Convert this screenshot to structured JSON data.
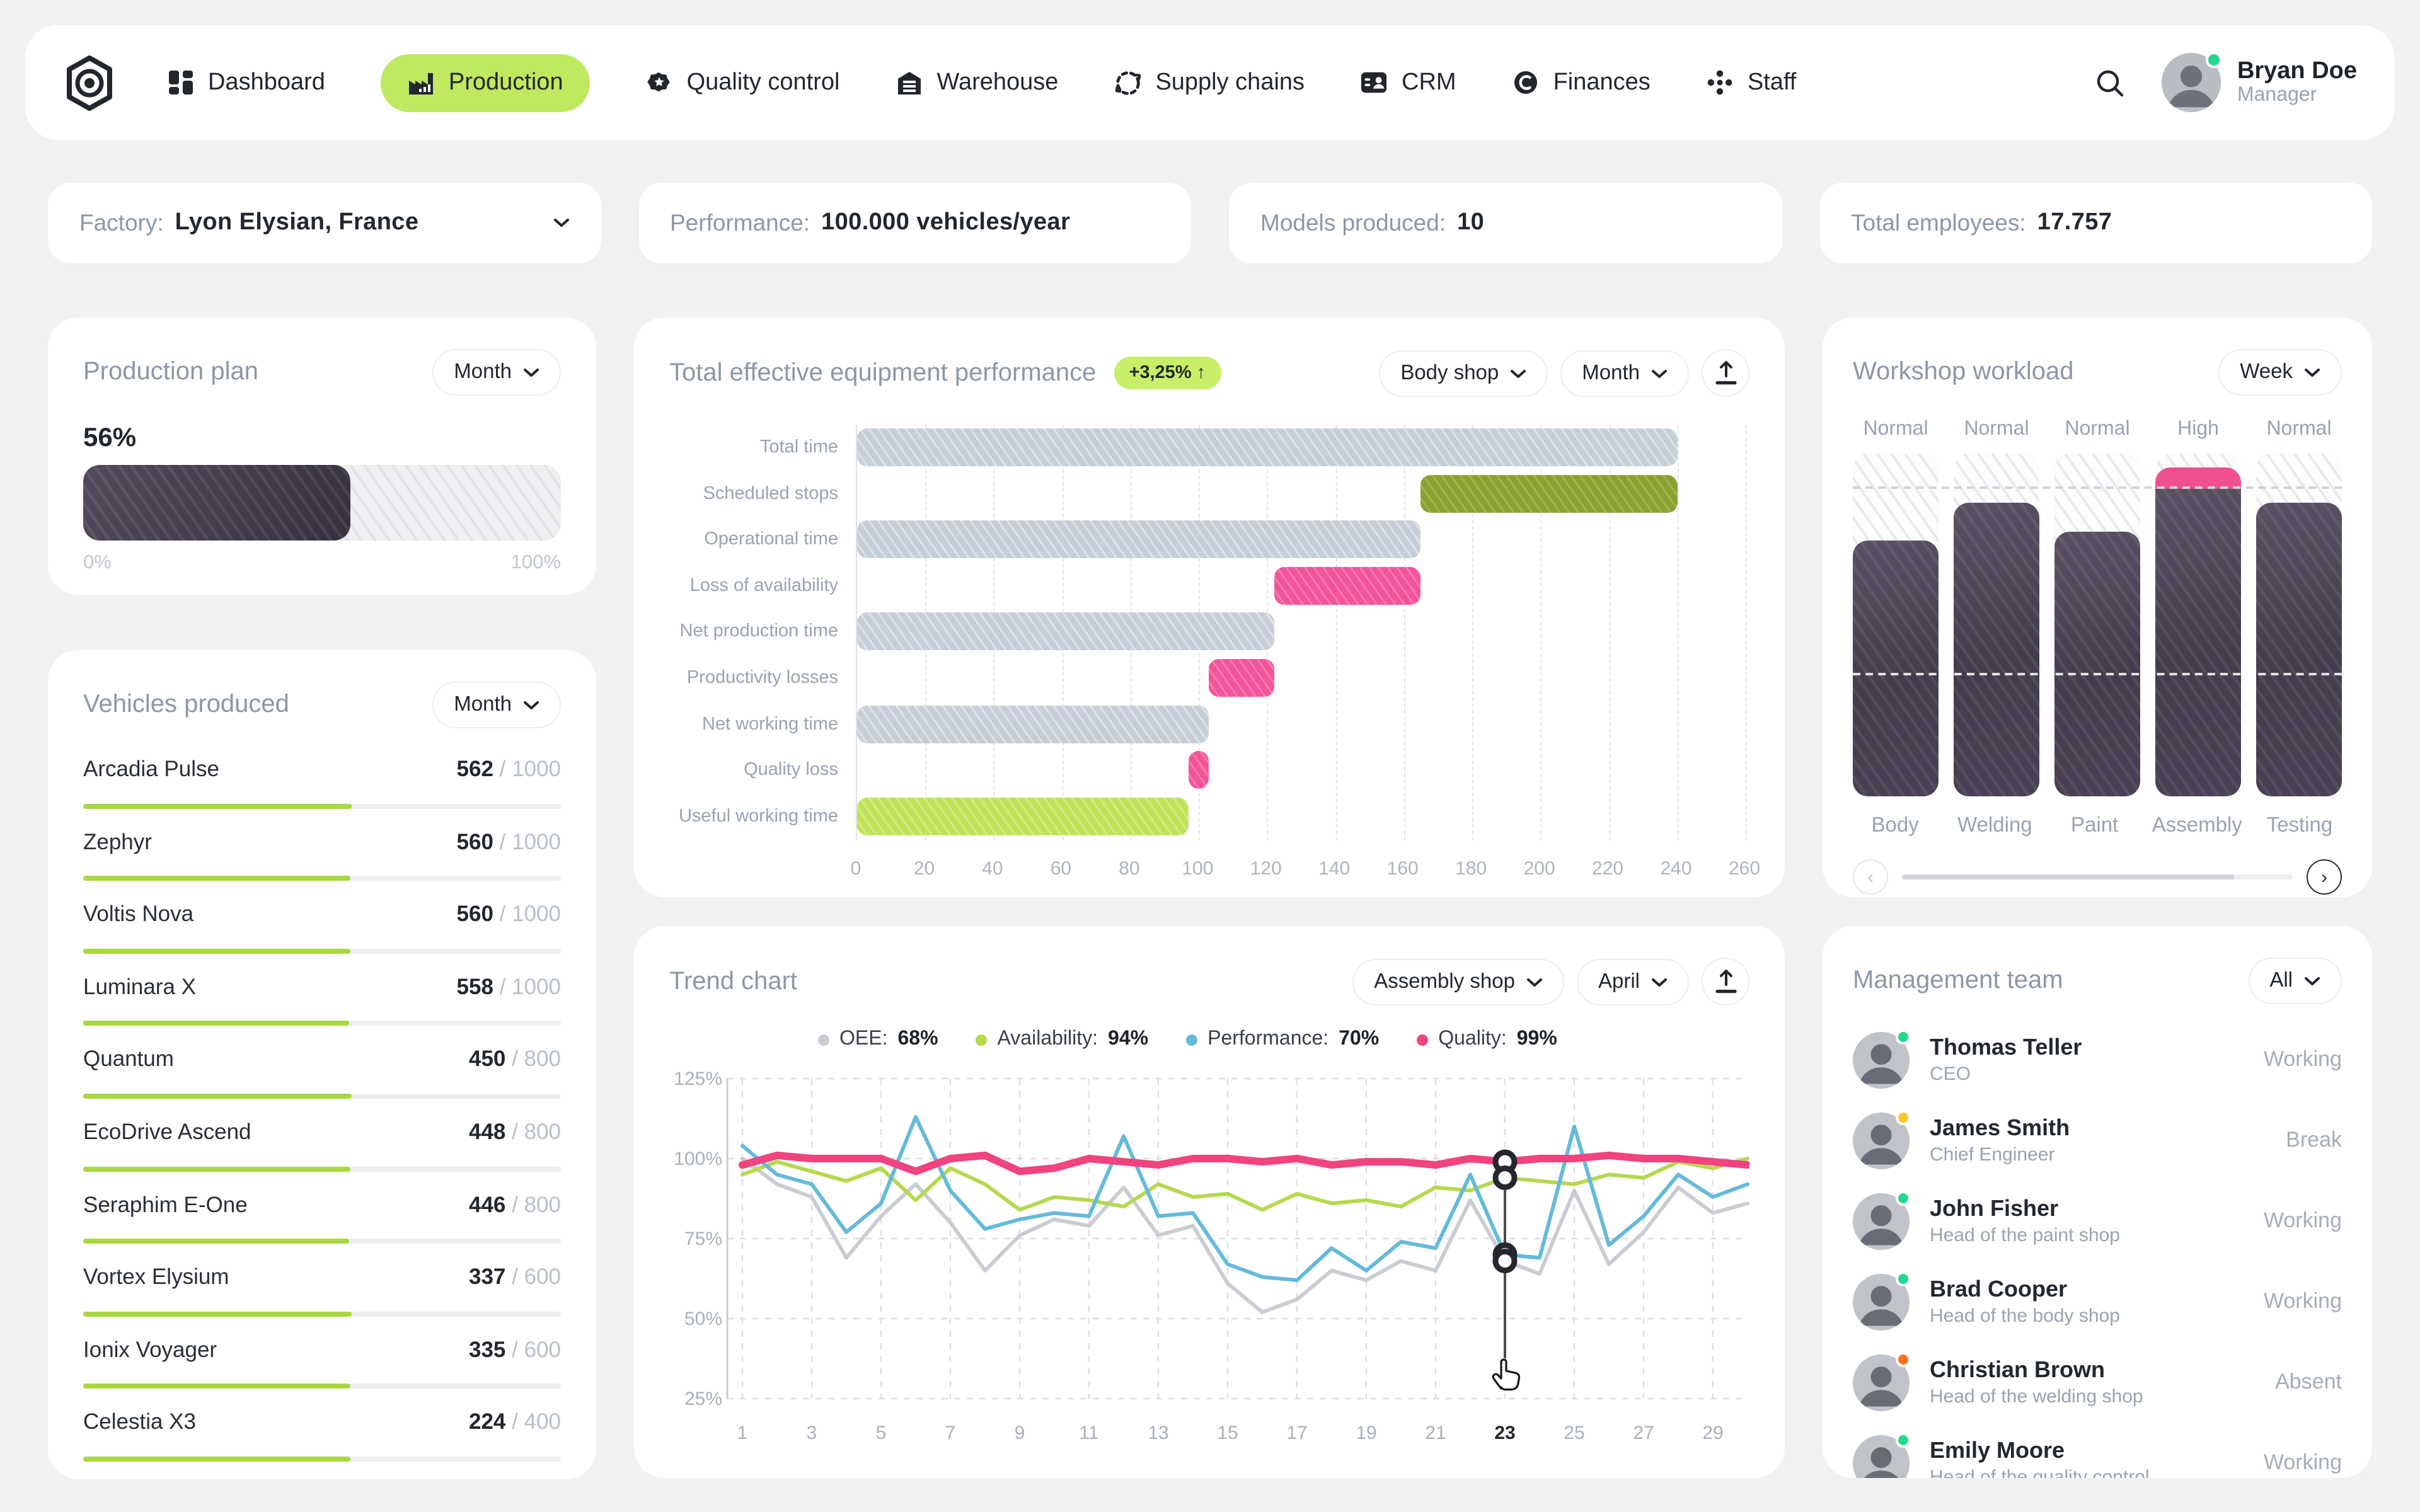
{
  "colors": {
    "lime": "#bfe95f",
    "lime_bar": "#a9d740",
    "pink": "#f0508f",
    "olive": "#8ba12e",
    "blue": "#64bada",
    "gray_line": "#c9ccd1",
    "green_line": "#b5d94d",
    "dark_bar": "#433c4d",
    "status_green": "#22d98b",
    "status_yellow": "#fec52e",
    "status_orange": "#fd7222"
  },
  "nav": {
    "items": [
      {
        "label": "Dashboard",
        "icon": "dashboard",
        "active": false
      },
      {
        "label": "Production",
        "icon": "production",
        "active": true
      },
      {
        "label": "Quality control",
        "icon": "quality",
        "active": false
      },
      {
        "label": "Warehouse",
        "icon": "warehouse",
        "active": false
      },
      {
        "label": "Supply chains",
        "icon": "supply",
        "active": false
      },
      {
        "label": "CRM",
        "icon": "crm",
        "active": false
      },
      {
        "label": "Finances",
        "icon": "finances",
        "active": false
      },
      {
        "label": "Staff",
        "icon": "staff",
        "active": false
      }
    ],
    "user": {
      "name": "Bryan Doe",
      "role": "Manager",
      "status_color": "#22d98b"
    }
  },
  "info_cards": [
    {
      "label": "Factory:",
      "value": "Lyon Elysian,  France",
      "dropdown": true
    },
    {
      "label": "Performance:",
      "value": "100.000 vehicles/year",
      "dropdown": false
    },
    {
      "label": "Models produced:",
      "value": "10",
      "dropdown": false
    },
    {
      "label": "Total employees:",
      "value": "17.757",
      "dropdown": false
    }
  ],
  "production_plan": {
    "title": "Production plan",
    "period": "Month",
    "percent": 56,
    "percent_label": "56%",
    "min_label": "0%",
    "max_label": "100%"
  },
  "vehicles": {
    "title": "Vehicles produced",
    "period": "Month",
    "items": [
      {
        "name": "Arcadia Pulse",
        "produced": 562,
        "target": 1000
      },
      {
        "name": "Zephyr",
        "produced": 560,
        "target": 1000
      },
      {
        "name": "Voltis Nova",
        "produced": 560,
        "target": 1000
      },
      {
        "name": "Luminara X",
        "produced": 558,
        "target": 1000
      },
      {
        "name": "Quantum",
        "produced": 450,
        "target": 800
      },
      {
        "name": "EcoDrive Ascend",
        "produced": 448,
        "target": 800
      },
      {
        "name": "Seraphim E-One",
        "produced": 446,
        "target": 800
      },
      {
        "name": "Vortex Elysium",
        "produced": 337,
        "target": 600
      },
      {
        "name": "Ionix Voyager",
        "produced": 335,
        "target": 600
      },
      {
        "name": "Celestia X3",
        "produced": 224,
        "target": 400
      }
    ]
  },
  "teep": {
    "title": "Total effective equipment performance",
    "badge": {
      "text": "+3,25%",
      "arrow": "↑"
    },
    "shop_filter": "Body shop",
    "period_filter": "Month",
    "chart_data": {
      "type": "bar",
      "orientation": "horizontal-waterfall",
      "categories": [
        "Total time",
        "Scheduled stops",
        "Operational time",
        "Loss of availability",
        "Net production time",
        "Productivity losses",
        "Net working time",
        "Quality loss",
        "Useful working time"
      ],
      "ranges": [
        [
          0,
          240
        ],
        [
          165,
          240
        ],
        [
          0,
          165
        ],
        [
          122,
          165
        ],
        [
          0,
          122
        ],
        [
          103,
          122
        ],
        [
          0,
          103
        ],
        [
          97,
          103
        ],
        [
          0,
          97
        ]
      ],
      "bar_colors": [
        "gray",
        "olive",
        "gray",
        "pink",
        "gray",
        "pink",
        "gray",
        "pink",
        "lime"
      ],
      "xticks": [
        0,
        20,
        40,
        60,
        80,
        100,
        120,
        140,
        160,
        180,
        200,
        220,
        240,
        260
      ],
      "xlim": [
        0,
        260
      ],
      "grid": "dashed-vertical"
    }
  },
  "trend": {
    "title": "Trend chart",
    "shop_filter": "Assembly shop",
    "period_filter": "April",
    "chart_data": {
      "type": "line",
      "x": [
        1,
        2,
        3,
        4,
        5,
        6,
        7,
        8,
        9,
        10,
        11,
        12,
        13,
        14,
        15,
        16,
        17,
        18,
        19,
        20,
        21,
        22,
        23,
        24,
        25,
        26,
        27,
        28,
        29,
        30
      ],
      "xticks": [
        1,
        3,
        5,
        7,
        9,
        11,
        13,
        15,
        17,
        19,
        21,
        23,
        25,
        27,
        29
      ],
      "yticks": [
        125,
        100,
        75,
        50,
        25
      ],
      "ytick_labels": [
        "125%",
        "100%",
        "75%",
        "50%",
        "25%"
      ],
      "ylim": [
        25,
        125
      ],
      "selected_day": 23,
      "grid": "dashed",
      "legend_position": "top",
      "series": [
        {
          "name": "OEE",
          "value_label": "68%",
          "color": "#c9ccd1",
          "values": [
            100,
            92,
            88,
            69,
            82,
            92,
            80,
            65,
            76,
            81,
            79,
            91,
            76,
            79,
            61,
            52,
            56,
            65,
            62,
            68,
            65,
            87,
            68,
            64,
            90,
            67,
            77,
            91,
            83,
            86
          ]
        },
        {
          "name": "Availability",
          "value_label": "94%",
          "color": "#b5d94d",
          "values": [
            95,
            99,
            96,
            93,
            97,
            87,
            97,
            92,
            84,
            88,
            87,
            85,
            92,
            88,
            89,
            84,
            89,
            86,
            87,
            85,
            91,
            90,
            94,
            93,
            92,
            95,
            94,
            99,
            97,
            100
          ]
        },
        {
          "name": "Performance",
          "value_label": "70%",
          "color": "#64bada",
          "values": [
            104,
            95,
            92,
            77,
            86,
            113,
            90,
            78,
            81,
            83,
            82,
            107,
            82,
            83,
            67,
            63,
            62,
            72,
            65,
            74,
            72,
            95,
            70,
            69,
            110,
            73,
            82,
            95,
            88,
            92
          ]
        },
        {
          "name": "Quality",
          "value_label": "99%",
          "color": "#f0437f",
          "values": [
            98,
            101,
            100,
            100,
            100,
            96,
            100,
            101,
            96,
            97,
            100,
            99,
            98,
            100,
            100,
            99,
            100,
            98,
            99,
            99,
            98,
            100,
            99,
            100,
            100,
            101,
            100,
            100,
            99,
            98
          ]
        }
      ]
    }
  },
  "workload": {
    "title": "Workshop workload",
    "period": "Week",
    "chart_data": {
      "type": "bar",
      "categories": [
        "Body",
        "Welding",
        "Paint",
        "Assembly",
        "Testing"
      ],
      "levels": [
        "Normal",
        "Normal",
        "Normal",
        "High",
        "Normal"
      ],
      "values": [
        74.5,
        85.7,
        77.3,
        96,
        85.8
      ],
      "capacity_line": 89.7,
      "lower_line": 35.3,
      "ylim": [
        0,
        100
      ]
    }
  },
  "team": {
    "title": "Management team",
    "filter": "All",
    "members": [
      {
        "name": "Thomas Teller",
        "role": "CEO",
        "status": "Working",
        "dot": "#22d98b"
      },
      {
        "name": "James Smith",
        "role": "Chief Engineer",
        "status": "Break",
        "dot": "#fec52e"
      },
      {
        "name": "John Fisher",
        "role": "Head of the paint shop",
        "status": "Working",
        "dot": "#22d98b"
      },
      {
        "name": "Brad Cooper",
        "role": "Head of the body shop",
        "status": "Working",
        "dot": "#22d98b"
      },
      {
        "name": "Christian Brown",
        "role": "Head of the welding shop",
        "status": "Absent",
        "dot": "#fd7222"
      },
      {
        "name": "Emily Moore",
        "role": "Head of the quality control",
        "status": "Working",
        "dot": "#22d98b"
      }
    ]
  }
}
